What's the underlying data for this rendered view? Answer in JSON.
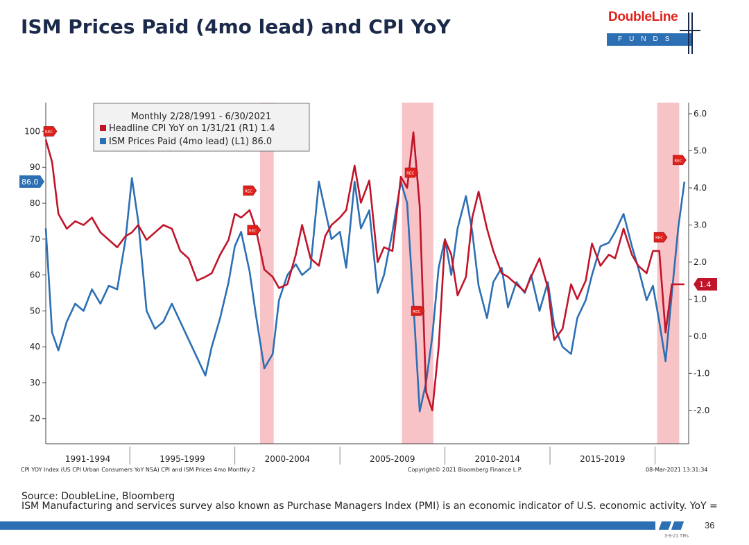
{
  "slide": {
    "title": "ISM Prices Paid (4mo lead) and CPI YoY",
    "logo_brand": "DoubleLine",
    "logo_sub": "FUNDS",
    "source": "Source: DoubleLine, Bloomberg",
    "footnote": "ISM Manufacturing and services survey also known as Purchase Managers Index (PMI) is an economic indicator of U.S. economic activity. YoY =",
    "page_number": "36",
    "version": "3-9-21 TRs"
  },
  "chart_data": {
    "type": "line",
    "legend": {
      "title": "Monthly 2/28/1991 - 6/30/2021",
      "items": [
        {
          "label": "Headline CPI YoY on 1/31/21 (R1)",
          "value": "1.4",
          "color": "#c0142a"
        },
        {
          "label": "ISM Prices Paid (4mo lead) (L1)",
          "value": "86.0",
          "color": "#2c6fb3"
        }
      ],
      "placement": "top-left"
    },
    "left_axis": {
      "min": 13,
      "max": 108,
      "ticks": [
        20,
        30,
        40,
        50,
        60,
        70,
        80,
        90,
        100
      ],
      "last_value_label": "86.0"
    },
    "right_axis": {
      "min": -2.9,
      "max": 6.3,
      "ticks": [
        "6.0",
        "5.0",
        "4.0",
        "3.0",
        "2.0",
        "1.0",
        "0.0",
        "-1.0",
        "-2.0"
      ],
      "last_value_label": "1.4"
    },
    "x_range": [
      1991.0,
      2021.6
    ],
    "x_categories": [
      "1991-1994",
      "1995-1999",
      "2000-2004",
      "2005-2009",
      "2010-2014",
      "2015-2019"
    ],
    "recessions": [
      [
        2001.2,
        2001.85
      ],
      [
        2007.95,
        2009.45
      ],
      [
        2020.1,
        2021.15
      ]
    ],
    "rec_markers": [
      "REC",
      "REC",
      "REC",
      "REC",
      "REC",
      "REC",
      "REC",
      "REC"
    ],
    "footer_left": "CPI YOY Index (US CPI Urban Consumers YoY NSA) CPI and ISM Prices 4mo  Monthly 2",
    "footer_center": "Copyright© 2021 Bloomberg Finance L.P.",
    "footer_right": "08-Mar-2021 13:31:34",
    "series": [
      {
        "name": "ISM Prices Paid (4mo lead)",
        "axis": "left",
        "color": "#2c6fb3",
        "x": [
          1991.0,
          1991.3,
          1991.6,
          1992.0,
          1992.4,
          1992.8,
          1993.2,
          1993.6,
          1994.0,
          1994.4,
          1994.8,
          1995.1,
          1995.4,
          1995.8,
          1996.2,
          1996.6,
          1997.0,
          1997.4,
          1997.8,
          1998.2,
          1998.6,
          1998.9,
          1999.3,
          1999.7,
          2000.0,
          2000.3,
          2000.7,
          2001.0,
          2001.4,
          2001.8,
          2002.1,
          2002.5,
          2002.9,
          2003.2,
          2003.6,
          2004.0,
          2004.3,
          2004.6,
          2005.0,
          2005.3,
          2005.7,
          2006.0,
          2006.4,
          2006.8,
          2007.1,
          2007.5,
          2007.9,
          2008.2,
          2008.5,
          2008.8,
          2009.1,
          2009.4,
          2009.7,
          2010.0,
          2010.3,
          2010.6,
          2011.0,
          2011.3,
          2011.6,
          2012.0,
          2012.3,
          2012.7,
          2013.0,
          2013.4,
          2013.8,
          2014.1,
          2014.5,
          2014.9,
          2015.2,
          2015.6,
          2016.0,
          2016.3,
          2016.7,
          2017.0,
          2017.4,
          2017.8,
          2018.1,
          2018.5,
          2018.9,
          2019.2,
          2019.6,
          2019.9,
          2020.2,
          2020.5,
          2020.8,
          2021.1,
          2021.4
        ],
        "values": [
          73,
          44,
          39,
          47,
          52,
          50,
          56,
          52,
          57,
          56,
          70,
          87,
          75,
          50,
          45,
          47,
          52,
          47,
          42,
          37,
          32,
          40,
          48,
          58,
          68,
          72,
          61,
          49,
          34,
          38,
          53,
          60,
          63,
          60,
          62,
          86,
          78,
          70,
          72,
          62,
          86,
          73,
          78,
          55,
          60,
          72,
          86,
          80,
          52,
          22,
          30,
          43,
          62,
          70,
          60,
          73,
          82,
          72,
          57,
          48,
          58,
          62,
          51,
          58,
          55,
          60,
          50,
          58,
          46,
          40,
          38,
          48,
          53,
          60,
          68,
          69,
          72,
          77,
          68,
          62,
          53,
          57,
          47,
          36,
          55,
          73,
          86
        ]
      },
      {
        "name": "Headline CPI YoY",
        "axis": "right",
        "color": "#c0142a",
        "x": [
          1991.0,
          1991.3,
          1991.6,
          1992.0,
          1992.4,
          1992.8,
          1993.2,
          1993.6,
          1994.0,
          1994.4,
          1994.8,
          1995.1,
          1995.4,
          1995.8,
          1996.2,
          1996.6,
          1997.0,
          1997.4,
          1997.8,
          1998.2,
          1998.6,
          1998.9,
          1999.3,
          1999.7,
          2000.0,
          2000.3,
          2000.7,
          2001.0,
          2001.4,
          2001.8,
          2002.1,
          2002.5,
          2002.9,
          2003.2,
          2003.6,
          2004.0,
          2004.3,
          2004.6,
          2005.0,
          2005.3,
          2005.7,
          2006.0,
          2006.4,
          2006.8,
          2007.1,
          2007.5,
          2007.9,
          2008.2,
          2008.5,
          2008.8,
          2009.1,
          2009.4,
          2009.7,
          2010.0,
          2010.3,
          2010.6,
          2011.0,
          2011.3,
          2011.6,
          2012.0,
          2012.3,
          2012.7,
          2013.0,
          2013.4,
          2013.8,
          2014.1,
          2014.5,
          2014.9,
          2015.2,
          2015.6,
          2016.0,
          2016.3,
          2016.7,
          2017.0,
          2017.4,
          2017.8,
          2018.1,
          2018.5,
          2018.9,
          2019.2,
          2019.6,
          2019.9,
          2020.2,
          2020.5,
          2020.8,
          2021.1,
          2021.4
        ],
        "values": [
          5.3,
          4.7,
          3.3,
          2.9,
          3.1,
          3.0,
          3.2,
          2.8,
          2.6,
          2.4,
          2.7,
          2.8,
          3.0,
          2.6,
          2.8,
          3.0,
          2.9,
          2.3,
          2.1,
          1.5,
          1.6,
          1.7,
          2.2,
          2.6,
          3.3,
          3.2,
          3.4,
          2.9,
          1.8,
          1.6,
          1.3,
          1.4,
          2.2,
          3.0,
          2.1,
          1.9,
          2.7,
          3.0,
          3.2,
          3.4,
          4.6,
          3.6,
          4.2,
          2.0,
          2.4,
          2.3,
          4.3,
          4.0,
          5.5,
          3.5,
          -1.5,
          -2.0,
          -0.3,
          2.6,
          2.2,
          1.1,
          1.6,
          3.2,
          3.9,
          2.9,
          2.3,
          1.7,
          1.6,
          1.4,
          1.2,
          1.6,
          2.1,
          1.3,
          -0.1,
          0.2,
          1.4,
          1.0,
          1.5,
          2.5,
          1.9,
          2.2,
          2.1,
          2.9,
          2.2,
          1.9,
          1.7,
          2.3,
          2.3,
          0.1,
          1.4,
          1.4,
          1.4
        ]
      }
    ]
  }
}
